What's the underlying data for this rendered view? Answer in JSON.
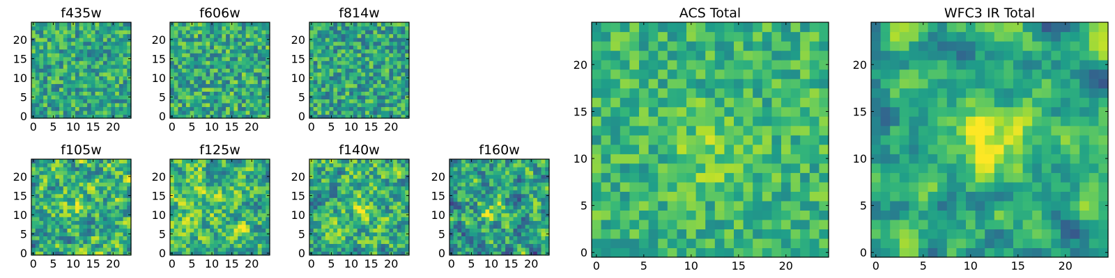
{
  "figure": {
    "title": ""
  },
  "chart_data": [
    {
      "type": "heatmap",
      "title": "f435w",
      "colormap": "viridis",
      "grid": [
        25,
        25
      ],
      "xlim": [
        -0.5,
        24.5
      ],
      "ylim": [
        -0.5,
        24.5
      ],
      "xticks": [
        0,
        5,
        10,
        15,
        20
      ],
      "yticks": [
        0,
        5,
        10,
        15,
        20
      ],
      "seed": 11,
      "smooth": 0,
      "mean": 0.6,
      "spread": 0.28
    },
    {
      "type": "heatmap",
      "title": "f606w",
      "colormap": "viridis",
      "grid": [
        25,
        25
      ],
      "xlim": [
        -0.5,
        24.5
      ],
      "ylim": [
        -0.5,
        24.5
      ],
      "xticks": [
        0,
        5,
        10,
        15,
        20
      ],
      "yticks": [
        0,
        5,
        10,
        15,
        20
      ],
      "seed": 23,
      "smooth": 0,
      "mean": 0.6,
      "spread": 0.3
    },
    {
      "type": "heatmap",
      "title": "f814w",
      "colormap": "viridis",
      "grid": [
        25,
        25
      ],
      "xlim": [
        -0.5,
        24.5
      ],
      "ylim": [
        -0.5,
        24.5
      ],
      "xticks": [
        0,
        5,
        10,
        15,
        20
      ],
      "yticks": [
        0,
        5,
        10,
        15,
        20
      ],
      "seed": 37,
      "smooth": 0,
      "mean": 0.58,
      "spread": 0.3
    },
    {
      "type": "heatmap",
      "title": "f105w",
      "colormap": "viridis",
      "grid": [
        25,
        25
      ],
      "xlim": [
        -0.5,
        24.5
      ],
      "ylim": [
        -0.5,
        24.5
      ],
      "xticks": [
        0,
        5,
        10,
        15,
        20
      ],
      "yticks": [
        0,
        5,
        10,
        15,
        20
      ],
      "seed": 41,
      "smooth": 1,
      "mean": 0.62,
      "spread": 0.32,
      "blob": [
        11,
        14,
        0.2
      ]
    },
    {
      "type": "heatmap",
      "title": "f125w",
      "colormap": "viridis",
      "grid": [
        25,
        25
      ],
      "xlim": [
        -0.5,
        24.5
      ],
      "ylim": [
        -0.5,
        24.5
      ],
      "xticks": [
        0,
        5,
        10,
        15,
        20
      ],
      "yticks": [
        0,
        5,
        10,
        15,
        20
      ],
      "seed": 53,
      "smooth": 1,
      "mean": 0.66,
      "spread": 0.32
    },
    {
      "type": "heatmap",
      "title": "f140w",
      "colormap": "viridis",
      "grid": [
        25,
        25
      ],
      "xlim": [
        -0.5,
        24.5
      ],
      "ylim": [
        -0.5,
        24.5
      ],
      "xticks": [
        0,
        5,
        10,
        15,
        20
      ],
      "yticks": [
        0,
        5,
        10,
        15,
        20
      ],
      "seed": 67,
      "smooth": 1,
      "mean": 0.62,
      "spread": 0.32,
      "blob": [
        12,
        12,
        0.15
      ]
    },
    {
      "type": "heatmap",
      "title": "f160w",
      "colormap": "viridis",
      "grid": [
        25,
        25
      ],
      "xlim": [
        -0.5,
        24.5
      ],
      "ylim": [
        -0.5,
        24.5
      ],
      "xticks": [
        0,
        5,
        10,
        15,
        20
      ],
      "yticks": [
        0,
        5,
        10,
        15,
        20
      ],
      "seed": 79,
      "smooth": 1,
      "mean": 0.55,
      "spread": 0.32,
      "blob": [
        10,
        11,
        0.25
      ]
    },
    {
      "type": "heatmap",
      "title": "ACS Total",
      "colormap": "viridis",
      "grid": [
        25,
        25
      ],
      "xlim": [
        -0.5,
        24.5
      ],
      "ylim": [
        -0.5,
        24.5
      ],
      "xticks": [
        0,
        5,
        10,
        15,
        20
      ],
      "yticks": [
        0,
        5,
        10,
        15,
        20
      ],
      "seed": 97,
      "smooth": 0,
      "mean": 0.66,
      "spread": 0.22,
      "blob": [
        12,
        11,
        0.15
      ]
    },
    {
      "type": "heatmap",
      "title": "WFC3 IR Total",
      "colormap": "viridis",
      "grid": [
        25,
        25
      ],
      "xlim": [
        -0.5,
        24.5
      ],
      "ylim": [
        -0.5,
        24.5
      ],
      "xticks": [
        0,
        5,
        10,
        15,
        20
      ],
      "yticks": [
        0,
        5,
        10,
        15,
        20
      ],
      "seed": 113,
      "smooth": 2,
      "mean": 0.6,
      "spread": 0.24,
      "blob": [
        12,
        12,
        0.35
      ]
    }
  ]
}
